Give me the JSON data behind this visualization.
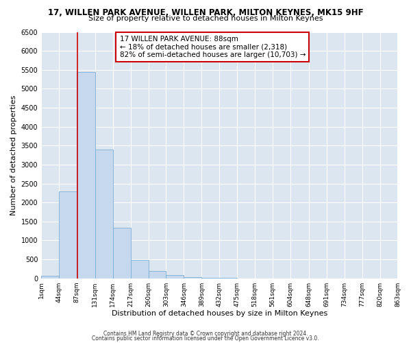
{
  "title": "17, WILLEN PARK AVENUE, WILLEN PARK, MILTON KEYNES, MK15 9HF",
  "subtitle": "Size of property relative to detached houses in Milton Keynes",
  "xlabel": "Distribution of detached houses by size in Milton Keynes",
  "ylabel": "Number of detached properties",
  "bar_color": "#c5d8ee",
  "bar_edge_color": "#7aadd4",
  "background_color": "#dce6f0",
  "grid_color": "#ffffff",
  "annotation_box_color": "#cc0000",
  "annotation_line_color": "#cc0000",
  "annotation_title": "17 WILLEN PARK AVENUE: 88sqm",
  "annotation_line2": "← 18% of detached houses are smaller (2,318)",
  "annotation_line3": "82% of semi-detached houses are larger (10,703) →",
  "property_line_x": 88,
  "ylim": [
    0,
    6500
  ],
  "yticks": [
    0,
    500,
    1000,
    1500,
    2000,
    2500,
    3000,
    3500,
    4000,
    4500,
    5000,
    5500,
    6000,
    6500
  ],
  "footer1": "Contains HM Land Registry data © Crown copyright and database right 2024.",
  "footer2": "Contains public sector information licensed under the Open Government Licence v3.0.",
  "bin_edges": [
    1,
    44,
    87,
    131,
    174,
    217,
    260,
    303,
    346,
    389,
    432,
    475,
    518,
    561,
    604,
    648,
    691,
    734,
    777,
    820,
    863
  ],
  "bin_labels": [
    "1sqm",
    "44sqm",
    "87sqm",
    "131sqm",
    "174sqm",
    "217sqm",
    "260sqm",
    "303sqm",
    "346sqm",
    "389sqm",
    "432sqm",
    "475sqm",
    "518sqm",
    "561sqm",
    "604sqm",
    "648sqm",
    "691sqm",
    "734sqm",
    "777sqm",
    "820sqm",
    "863sqm"
  ],
  "bar_heights": [
    60,
    2300,
    5450,
    3400,
    1330,
    480,
    195,
    85,
    30,
    10,
    5,
    3,
    1,
    0,
    0,
    0,
    0,
    0,
    0,
    0
  ],
  "fig_facecolor": "#ffffff",
  "title_fontsize": 8.5,
  "subtitle_fontsize": 8.0
}
